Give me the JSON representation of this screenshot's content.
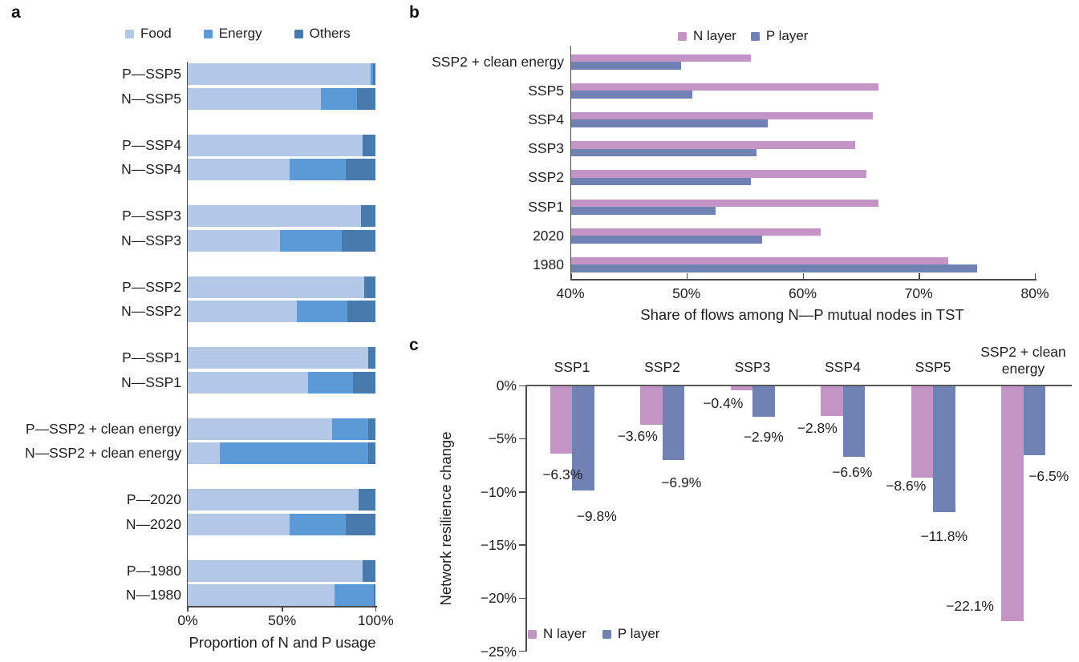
{
  "colors": {
    "food": "#b3c7e6",
    "energy": "#5b9ad5",
    "others": "#487aad",
    "n_layer": "#c494c6",
    "p_layer": "#7081b3",
    "axis": "#4a4a4a",
    "zero_line": "#595959",
    "text": "#1f1f1f"
  },
  "chart_data": [
    {
      "id": "a",
      "panel_label": "a",
      "type": "bar",
      "orientation": "horizontal-stacked",
      "legend": [
        "Food",
        "Energy",
        "Others"
      ],
      "xlabel": "Proportion of N and P usage",
      "x_ticks": [
        "0%",
        "50%",
        "100%"
      ],
      "xlim": [
        0,
        100
      ],
      "grid": false,
      "categories": [
        "P—SSP5",
        "N—SSP5",
        "P—SSP4",
        "N—SSP4",
        "P—SSP3",
        "N—SSP3",
        "P—SSP2",
        "N—SSP2",
        "P—SSP1",
        "N—SSP1",
        "P—SSP2 + clean energy",
        "N—SSP2 + clean energy",
        "P—2020",
        "N—2020",
        "P—1980",
        "N—1980"
      ],
      "series": [
        {
          "name": "Food",
          "values": [
            97.5,
            71,
            93,
            54,
            92,
            49,
            94,
            58,
            96,
            64,
            77,
            17,
            91,
            54,
            93,
            78
          ]
        },
        {
          "name": "Energy",
          "values": [
            1,
            19,
            0,
            30,
            0,
            33,
            0,
            27,
            0,
            24,
            19,
            79,
            0,
            30,
            0,
            21
          ]
        },
        {
          "name": "Others",
          "values": [
            1.5,
            10,
            7,
            16,
            8,
            18,
            6,
            15,
            4,
            12,
            4,
            4,
            9,
            16,
            7,
            1
          ]
        }
      ]
    },
    {
      "id": "b",
      "panel_label": "b",
      "type": "bar",
      "orientation": "horizontal-grouped",
      "legend": [
        "N layer",
        "P layer"
      ],
      "xlabel": "Share of flows among N—P mutual nodes in TST",
      "x_ticks": [
        "40%",
        "50%",
        "60%",
        "70%",
        "80%"
      ],
      "xlim": [
        40,
        80
      ],
      "grid": false,
      "categories": [
        "SSP2 + clean energy",
        "SSP5",
        "SSP4",
        "SSP3",
        "SSP2",
        "SSP1",
        "2020",
        "1980"
      ],
      "series": [
        {
          "name": "N layer",
          "values": [
            55.5,
            66.5,
            66.0,
            64.5,
            65.5,
            66.5,
            61.5,
            72.5
          ]
        },
        {
          "name": "P layer",
          "values": [
            49.5,
            50.5,
            57.0,
            56.0,
            55.5,
            52.5,
            56.5,
            75.0
          ]
        }
      ]
    },
    {
      "id": "c",
      "panel_label": "c",
      "type": "bar",
      "orientation": "vertical-grouped",
      "legend": [
        "N layer",
        "P layer"
      ],
      "ylabel": "Network resilience change",
      "y_ticks": [
        "0%",
        "−5%",
        "−10%",
        "−15%",
        "−20%",
        "−25%"
      ],
      "ylim": [
        -25,
        0
      ],
      "grid": false,
      "categories": [
        "SSP1",
        "SSP2",
        "SSP3",
        "SSP4",
        "SSP5",
        "SSP2 + clean\nenergy"
      ],
      "series": [
        {
          "name": "N layer",
          "values": [
            -6.3,
            -3.6,
            -0.4,
            -2.8,
            -8.6,
            -22.1
          ]
        },
        {
          "name": "P layer",
          "values": [
            -9.8,
            -6.9,
            -2.9,
            -6.6,
            -11.8,
            -6.5
          ]
        }
      ],
      "data_labels": {
        "n_layer": [
          "−6.3%",
          "−3.6%",
          "−0.4%",
          "−2.8%",
          "−8.6%",
          "−22.1%"
        ],
        "p_layer": [
          "−9.8%",
          "−6.9%",
          "−2.9%",
          "−6.6%",
          "−11.8%",
          "−6.5%"
        ]
      }
    }
  ]
}
